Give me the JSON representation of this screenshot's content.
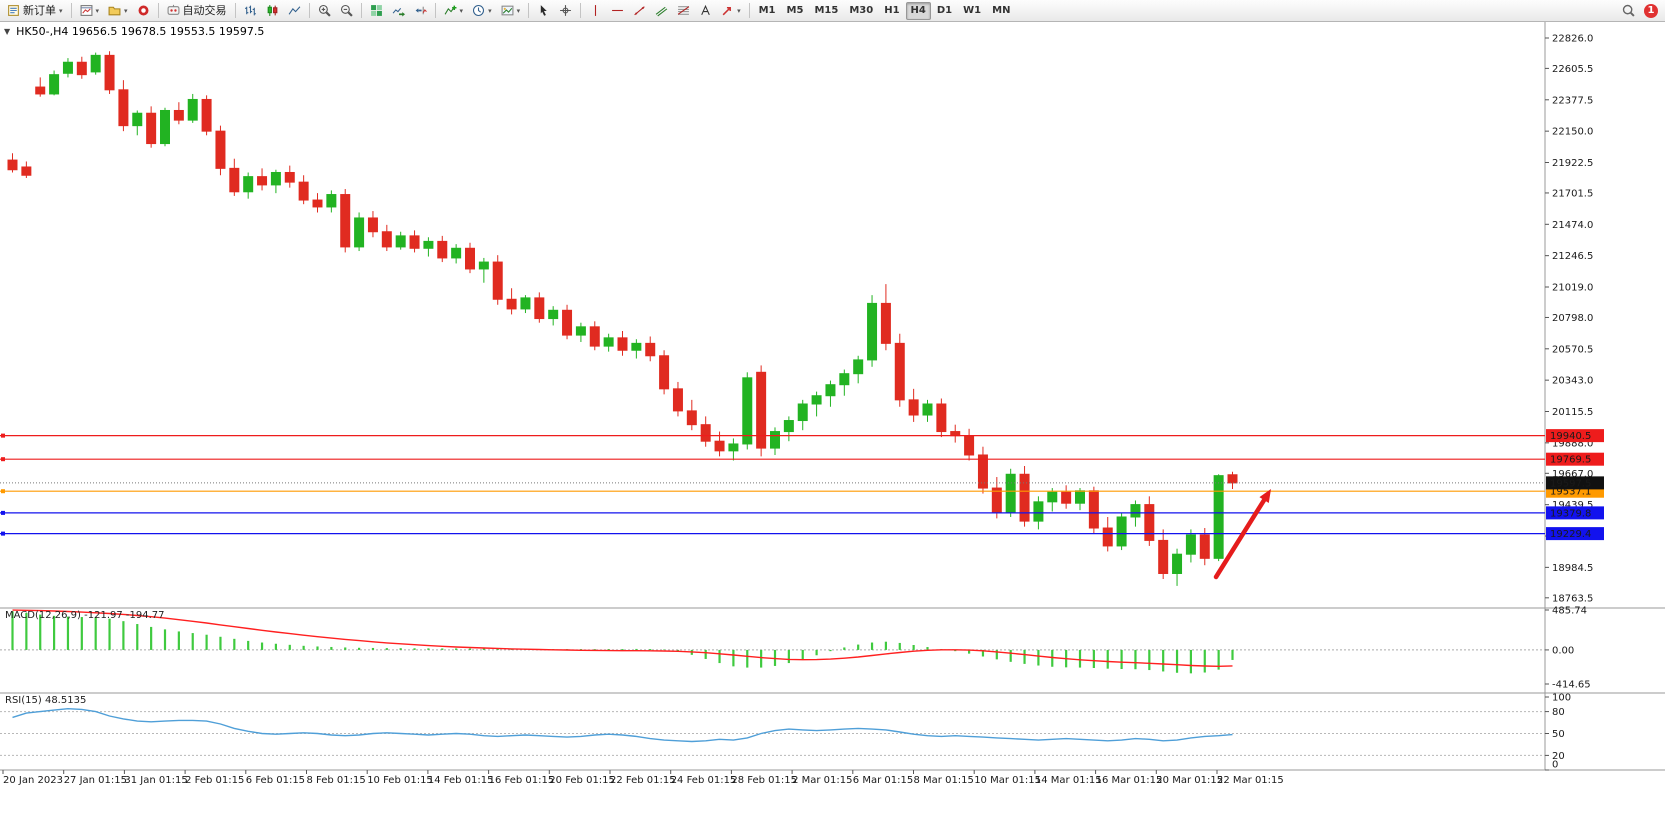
{
  "icons": {
    "one_click_toggle": "▼",
    "dropdown_caret": "▾"
  },
  "toolbar": {
    "new_order_label": "新订单",
    "autotrading_label": "自动交易",
    "timeframes": [
      "M1",
      "M5",
      "M15",
      "M30",
      "H1",
      "H4",
      "D1",
      "W1",
      "MN"
    ],
    "active_timeframe": "H4",
    "notification_count": "1",
    "icon_buttons": [
      "new-order",
      "new-chart",
      "profiles",
      "market",
      "autotrading",
      "bar-chart",
      "candlestick-chart",
      "line-chart",
      "zoom-in",
      "zoom-out",
      "tile-windows",
      "auto-scroll",
      "chart-shift",
      "indicators",
      "periods",
      "templates",
      "cursor",
      "crosshair",
      "vertical-line",
      "horizontal-line",
      "trendline",
      "channel",
      "fibonacci",
      "text",
      "arrows",
      "search",
      "notification"
    ]
  },
  "chart": {
    "title": "HK50-,H4  19656.5 19678.5 19553.5 19597.5"
  },
  "chart_data": [
    {
      "type": "candlestick",
      "symbol": "HK50-",
      "timeframe": "H4",
      "ohlc_current": {
        "open": 19656.5,
        "high": 19678.5,
        "low": 19553.5,
        "close": 19597.5
      },
      "up_color": "#22b322",
      "down_color": "#e02b20",
      "y_ticks": [
        "22826.0",
        "22605.5",
        "22377.5",
        "22150.0",
        "21922.5",
        "21701.5",
        "21474.0",
        "21246.5",
        "21019.0",
        "20798.0",
        "20570.5",
        "20343.0",
        "20115.5",
        "19888.0",
        "19667.0",
        "19439.5",
        "19212.0",
        "18984.5",
        "18763.5"
      ],
      "x_labels": [
        "20 Jan 2023",
        "27 Jan 01:15",
        "31 Jan 01:15",
        "2 Feb 01:15",
        "6 Feb 01:15",
        "8 Feb 01:15",
        "10 Feb 01:15",
        "14 Feb 01:15",
        "16 Feb 01:15",
        "20 Feb 01:15",
        "22 Feb 01:15",
        "24 Feb 01:15",
        "28 Feb 01:15",
        "2 Mar 01:15",
        "6 Mar 01:15",
        "8 Mar 01:15",
        "10 Mar 01:15",
        "14 Mar 01:15",
        "16 Mar 01:15",
        "20 Mar 01:15",
        "22 Mar 01:15"
      ],
      "horizontal_lines": [
        {
          "label": "19940.5",
          "price": 19940.5,
          "color": "#ee1c1c",
          "style": "solid"
        },
        {
          "label": "19769.5",
          "price": 19769.5,
          "color": "#ee1c1c",
          "style": "solid"
        },
        {
          "label": "19537.1",
          "price": 19537.1,
          "color": "#ff9a00",
          "style": "solid"
        },
        {
          "label": "19379.8",
          "price": 19379.8,
          "color": "#1212ee",
          "style": "solid"
        },
        {
          "label": "19229.4",
          "price": 19229.4,
          "color": "#1212ee",
          "style": "solid"
        }
      ],
      "current_price": {
        "label": "19597.5",
        "price": 19597.5,
        "color": "#111111",
        "style": "dotted"
      },
      "annotations": [
        {
          "type": "arrow",
          "color": "#e51c1c",
          "from": [
            1216,
            577
          ],
          "to": [
            1271,
            489
          ]
        }
      ],
      "candles": [
        [
          21940,
          21990,
          21850,
          21870
        ],
        [
          21890,
          21930,
          21810,
          21830
        ],
        [
          22470,
          22540,
          22400,
          22420
        ],
        [
          22420,
          22590,
          22410,
          22560
        ],
        [
          22570,
          22680,
          22540,
          22650
        ],
        [
          22650,
          22690,
          22530,
          22560
        ],
        [
          22580,
          22720,
          22560,
          22700
        ],
        [
          22700,
          22730,
          22420,
          22450
        ],
        [
          22450,
          22520,
          22150,
          22190
        ],
        [
          22190,
          22300,
          22120,
          22280
        ],
        [
          22280,
          22330,
          22030,
          22060
        ],
        [
          22060,
          22320,
          22040,
          22300
        ],
        [
          22300,
          22360,
          22200,
          22230
        ],
        [
          22230,
          22420,
          22210,
          22380
        ],
        [
          22380,
          22410,
          22120,
          22150
        ],
        [
          22150,
          22190,
          21830,
          21880
        ],
        [
          21880,
          21950,
          21680,
          21710
        ],
        [
          21710,
          21850,
          21660,
          21820
        ],
        [
          21820,
          21880,
          21720,
          21760
        ],
        [
          21760,
          21870,
          21700,
          21850
        ],
        [
          21850,
          21900,
          21740,
          21780
        ],
        [
          21780,
          21830,
          21620,
          21650
        ],
        [
          21650,
          21700,
          21560,
          21600
        ],
        [
          21600,
          21720,
          21560,
          21690
        ],
        [
          21690,
          21730,
          21270,
          21310
        ],
        [
          21310,
          21560,
          21280,
          21520
        ],
        [
          21520,
          21570,
          21380,
          21420
        ],
        [
          21420,
          21470,
          21280,
          21310
        ],
        [
          21310,
          21420,
          21290,
          21390
        ],
        [
          21390,
          21430,
          21270,
          21300
        ],
        [
          21300,
          21380,
          21240,
          21350
        ],
        [
          21350,
          21390,
          21200,
          21230
        ],
        [
          21230,
          21330,
          21190,
          21300
        ],
        [
          21300,
          21340,
          21120,
          21150
        ],
        [
          21150,
          21230,
          21050,
          21200
        ],
        [
          21200,
          21250,
          20890,
          20930
        ],
        [
          20930,
          21010,
          20820,
          20860
        ],
        [
          20860,
          20960,
          20830,
          20940
        ],
        [
          20940,
          20980,
          20760,
          20790
        ],
        [
          20790,
          20880,
          20740,
          20850
        ],
        [
          20850,
          20890,
          20640,
          20670
        ],
        [
          20670,
          20760,
          20620,
          20730
        ],
        [
          20730,
          20770,
          20560,
          20590
        ],
        [
          20590,
          20680,
          20550,
          20650
        ],
        [
          20650,
          20700,
          20520,
          20560
        ],
        [
          20560,
          20640,
          20500,
          20610
        ],
        [
          20610,
          20660,
          20480,
          20520
        ],
        [
          20520,
          20560,
          20240,
          20280
        ],
        [
          20280,
          20330,
          20080,
          20120
        ],
        [
          20120,
          20200,
          19980,
          20020
        ],
        [
          20020,
          20080,
          19860,
          19900
        ],
        [
          19900,
          19970,
          19790,
          19830
        ],
        [
          19830,
          19920,
          19760,
          19880
        ],
        [
          19880,
          20400,
          19840,
          20360
        ],
        [
          20400,
          20450,
          19790,
          19850
        ],
        [
          19850,
          20000,
          19800,
          19970
        ],
        [
          19970,
          20080,
          19900,
          20050
        ],
        [
          20050,
          20200,
          19980,
          20170
        ],
        [
          20170,
          20260,
          20080,
          20230
        ],
        [
          20230,
          20340,
          20150,
          20310
        ],
        [
          20310,
          20420,
          20230,
          20390
        ],
        [
          20390,
          20520,
          20320,
          20490
        ],
        [
          20490,
          20960,
          20440,
          20900
        ],
        [
          20900,
          21040,
          20560,
          20610
        ],
        [
          20610,
          20680,
          20150,
          20200
        ],
        [
          20200,
          20280,
          20040,
          20090
        ],
        [
          20090,
          20200,
          20040,
          20170
        ],
        [
          20170,
          20210,
          19930,
          19970
        ],
        [
          19970,
          20020,
          19890,
          19940
        ],
        [
          19940,
          19990,
          19760,
          19800
        ],
        [
          19800,
          19860,
          19520,
          19560
        ],
        [
          19560,
          19640,
          19340,
          19380
        ],
        [
          19380,
          19700,
          19350,
          19660
        ],
        [
          19660,
          19720,
          19280,
          19320
        ],
        [
          19320,
          19500,
          19260,
          19460
        ],
        [
          19460,
          19560,
          19390,
          19530
        ],
        [
          19530,
          19580,
          19410,
          19450
        ],
        [
          19450,
          19560,
          19400,
          19540
        ],
        [
          19540,
          19570,
          19230,
          19270
        ],
        [
          19270,
          19350,
          19100,
          19140
        ],
        [
          19140,
          19380,
          19110,
          19350
        ],
        [
          19350,
          19470,
          19280,
          19440
        ],
        [
          19440,
          19500,
          19140,
          19180
        ],
        [
          19180,
          19260,
          18900,
          18940
        ],
        [
          18940,
          19120,
          18850,
          19080
        ],
        [
          19080,
          19260,
          19020,
          19220
        ],
        [
          19220,
          19270,
          19000,
          19050
        ],
        [
          19050,
          19660,
          19030,
          19650
        ],
        [
          19656.5,
          19678.5,
          19553.5,
          19597.5
        ]
      ]
    },
    {
      "type": "macd",
      "label": "MACD(12,26,9) -121.97 -194.77",
      "values_current": {
        "macd": -121.97,
        "signal": -194.77
      },
      "y_ticks": [
        "485.74",
        "0.00",
        "-414.65"
      ],
      "histogram_color": "#3fca3f",
      "signal_color": "#ff2020",
      "histogram": [
        470,
        450,
        430,
        415,
        405,
        400,
        398,
        380,
        350,
        315,
        280,
        250,
        225,
        205,
        185,
        160,
        135,
        110,
        90,
        75,
        62,
        50,
        42,
        36,
        30,
        26,
        24,
        22,
        21,
        20,
        19,
        18,
        18,
        17,
        17,
        15,
        13,
        12,
        11,
        11,
        10,
        10,
        10,
        11,
        11,
        12,
        11,
        5,
        -20,
        -60,
        -110,
        -160,
        -200,
        -215,
        -215,
        -195,
        -160,
        -115,
        -65,
        -15,
        30,
        65,
        90,
        100,
        85,
        60,
        35,
        10,
        -15,
        -45,
        -80,
        -115,
        -145,
        -170,
        -190,
        -205,
        -212,
        -215,
        -220,
        -228,
        -232,
        -235,
        -245,
        -262,
        -278,
        -285,
        -275,
        -240,
        -122
      ],
      "signal": [
        485,
        482,
        478,
        473,
        467,
        460,
        452,
        443,
        432,
        419,
        404,
        387,
        368,
        348,
        327,
        305,
        283,
        261,
        239,
        218,
        198,
        179,
        161,
        144,
        128,
        113,
        99,
        86,
        74,
        63,
        53,
        44,
        36,
        29,
        23,
        18,
        13,
        9,
        5,
        2,
        -1,
        -4,
        -6,
        -8,
        -9,
        -10,
        -11,
        -13,
        -17,
        -24,
        -34,
        -47,
        -62,
        -78,
        -93,
        -106,
        -115,
        -119,
        -118,
        -112,
        -101,
        -86,
        -68,
        -49,
        -31,
        -16,
        -5,
        1,
        2,
        -2,
        -11,
        -24,
        -40,
        -57,
        -75,
        -92,
        -107,
        -120,
        -131,
        -141,
        -149,
        -156,
        -163,
        -171,
        -180,
        -189,
        -196,
        -199,
        -194.77
      ]
    },
    {
      "type": "rsi",
      "label": "RSI(15) 48.5135",
      "value": 48.5135,
      "line_color": "#4f9fd8",
      "levels": [
        80,
        50,
        20
      ],
      "y_ticks": [
        "100",
        "80",
        "50",
        "20",
        "0"
      ],
      "values": [
        72,
        78,
        80,
        82,
        84,
        83,
        80,
        74,
        70,
        67,
        66,
        67,
        68,
        68,
        67,
        63,
        57,
        53,
        50,
        49,
        50,
        51,
        50,
        48,
        47,
        48,
        50,
        51,
        50,
        49,
        48,
        49,
        50,
        49,
        47,
        46,
        47,
        48,
        47,
        46,
        45,
        46,
        48,
        49,
        48,
        46,
        43,
        41,
        40,
        39,
        40,
        42,
        41,
        44,
        50,
        54,
        56,
        55,
        54,
        55,
        56,
        57,
        56,
        55,
        52,
        49,
        47,
        46,
        47,
        46,
        45,
        44,
        43,
        42,
        41,
        42,
        43,
        42,
        41,
        40,
        41,
        43,
        42,
        40,
        41,
        44,
        46,
        47,
        48.5
      ]
    }
  ]
}
